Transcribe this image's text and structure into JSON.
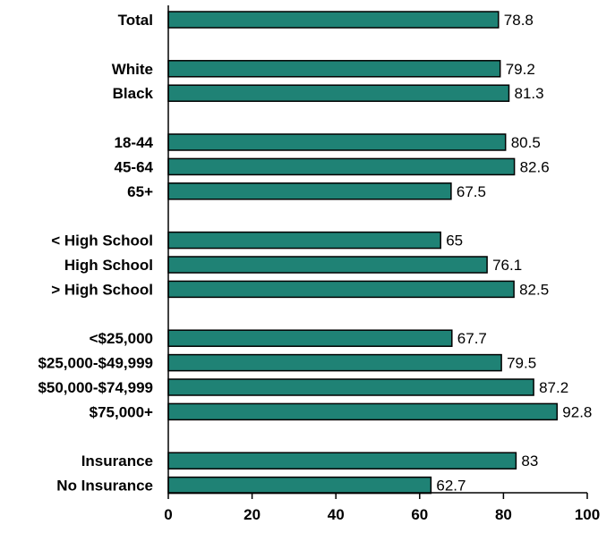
{
  "colors": {
    "bar_fill": "#1f8275",
    "bar_stroke": "#000000",
    "axis": "#000000",
    "background": "#ffffff"
  },
  "chart_data": {
    "type": "bar",
    "orientation": "horizontal",
    "categories": [
      "Total",
      "White",
      "Black",
      "18-44",
      "45-64",
      "65+",
      "< High School",
      "High School",
      "> High School",
      "<$25,000",
      "$25,000-$49,999",
      "$50,000-$74,999",
      "$75,000+",
      "Insurance",
      "No Insurance"
    ],
    "values": [
      78.8,
      79.2,
      81.3,
      80.5,
      82.6,
      67.5,
      65,
      76.1,
      82.5,
      67.7,
      79.5,
      87.2,
      92.8,
      83,
      62.7
    ],
    "value_labels": [
      "78.8",
      "79.2",
      "81.3",
      "80.5",
      "82.6",
      "67.5",
      "65",
      "76.1",
      "82.5",
      "67.7",
      "79.5",
      "87.2",
      "92.8",
      "83",
      "62.7"
    ],
    "groups": [
      [
        "Total"
      ],
      [
        "White",
        "Black"
      ],
      [
        "18-44",
        "45-64",
        "65+"
      ],
      [
        "< High School",
        "High School",
        "> High School"
      ],
      [
        "<$25,000",
        "$25,000-$49,999",
        "$50,000-$74,999",
        "$75,000+"
      ],
      [
        "Insurance",
        "No Insurance"
      ]
    ],
    "xlim": [
      0,
      100
    ],
    "xticks": [
      0,
      20,
      40,
      60,
      80,
      100
    ],
    "xtick_labels": [
      "0",
      "20",
      "40",
      "60",
      "80",
      "100"
    ],
    "title": "",
    "xlabel": "",
    "ylabel": "",
    "grid": false,
    "legend": "none"
  }
}
